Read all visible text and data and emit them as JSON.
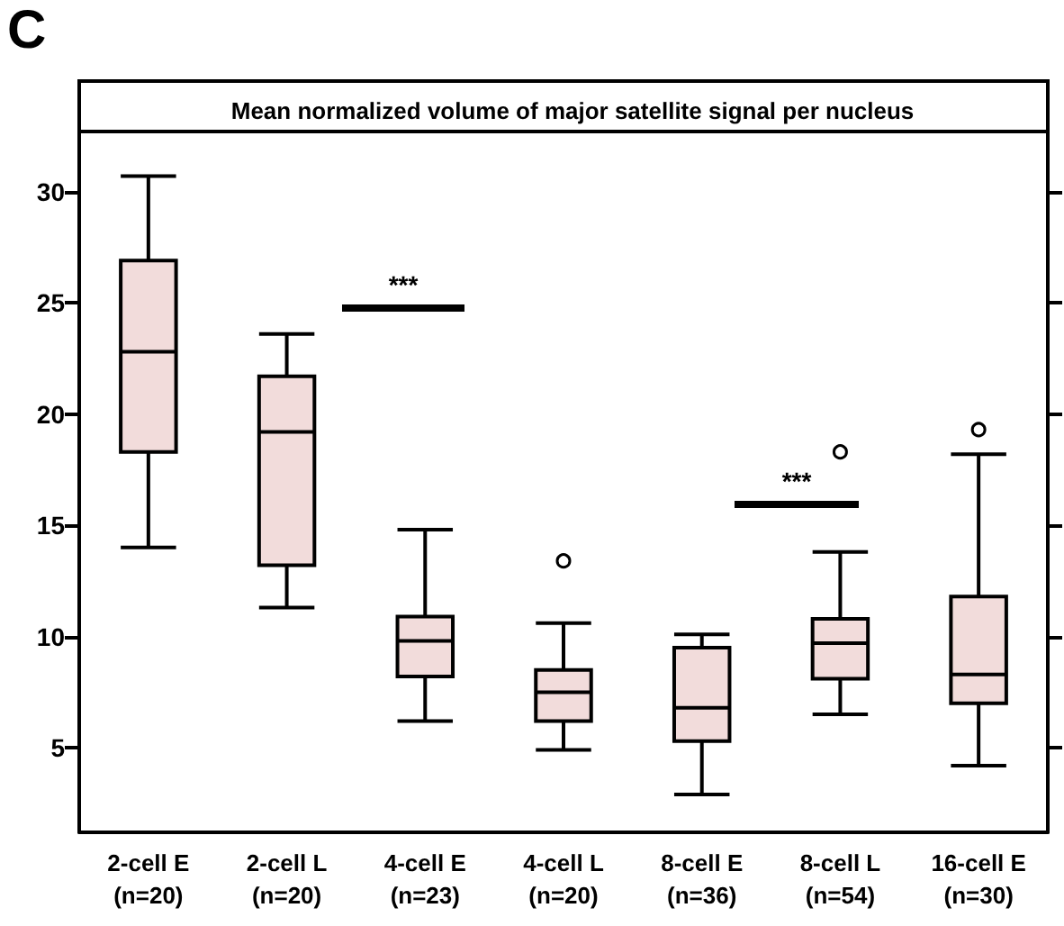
{
  "chart_data": {
    "type": "box",
    "title": "Mean normalized volume of major satellite signal per nucleus",
    "categories": [
      "2-cell E\n(n=20)",
      "2-cell L\n(n=20)",
      "4-cell E\n(n=23)",
      "4-cell L\n(n=20)",
      "8-cell E\n(n=36)",
      "8-cell L\n(n=54)",
      "16-cell E\n(n=30)"
    ],
    "color": "#f2dcdb",
    "boxes": [
      {
        "low": 14.0,
        "q1": 18.3,
        "median": 22.8,
        "q3": 26.9,
        "high": 30.7
      },
      {
        "low": 11.3,
        "q1": 13.2,
        "median": 19.2,
        "q3": 21.7,
        "high": 23.6
      },
      {
        "low": 6.2,
        "q1": 8.2,
        "median": 9.8,
        "q3": 10.9,
        "high": 14.8
      },
      {
        "low": 4.9,
        "q1": 6.2,
        "median": 7.5,
        "q3": 8.5,
        "high": 10.6,
        "outliers": [
          13.4
        ]
      },
      {
        "low": 2.9,
        "q1": 5.3,
        "median": 6.8,
        "q3": 9.5,
        "high": 10.1
      },
      {
        "low": 6.5,
        "q1": 8.1,
        "median": 9.7,
        "q3": 10.8,
        "high": 13.8,
        "outliers": [
          18.3
        ]
      },
      {
        "low": 4.2,
        "q1": 7.0,
        "median": 8.3,
        "q3": 11.8,
        "high": 18.2,
        "outliers": [
          19.3
        ]
      }
    ],
    "ylim": [
      1.2,
      32.7
    ],
    "yticks": [
      5,
      10,
      15,
      20,
      25,
      30
    ],
    "grid": false,
    "annotations": [
      "C",
      "***",
      "***"
    ]
  }
}
